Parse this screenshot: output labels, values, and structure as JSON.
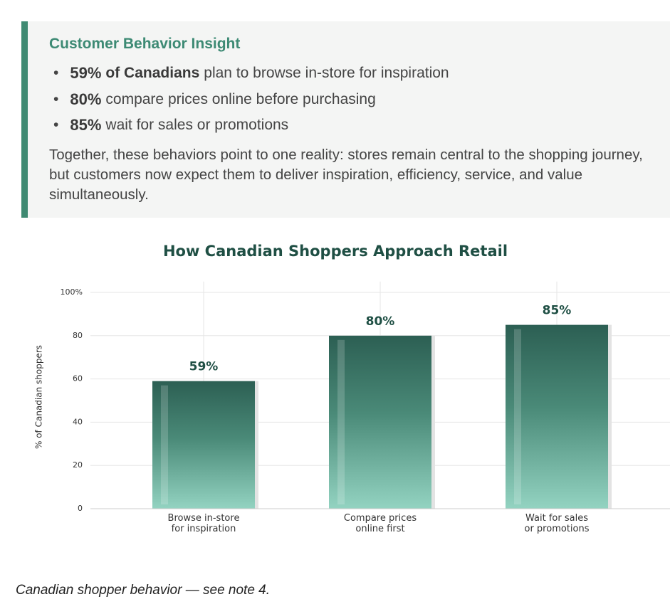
{
  "insight": {
    "title": "Customer Behavior Insight",
    "bullets": [
      {
        "stat": "59%",
        "emphasis": "of Canadians",
        "text": "plan to browse in-store for inspiration"
      },
      {
        "stat": "80%",
        "text": "compare prices online before purchasing"
      },
      {
        "stat": "85%",
        "text": "wait for sales or promotions"
      }
    ],
    "paragraph": "Together, these behaviors point to one reality: stores remain central to the shopping journey, but customers now expect them to deliver inspiration, efficiency, service, and value simultaneously."
  },
  "chart_data": {
    "type": "bar",
    "title": "How Canadian Shoppers Approach Retail",
    "y_label": "% of Canadian shoppers",
    "categories": [
      "Browse in-store\nfor inspiration",
      "Compare prices\nonline first",
      "Wait for sales\nor promotions"
    ],
    "values": [
      59,
      80,
      85
    ],
    "value_labels": [
      "59%",
      "80%",
      "85%"
    ],
    "color": "#2e6457",
    "ylim": [
      0,
      105
    ],
    "yticks": [
      0,
      20,
      40,
      60,
      80,
      {
        "value": 100,
        "label": "100%"
      }
    ],
    "grid": true
  },
  "caption": "Canadian shopper behavior — see note 4."
}
